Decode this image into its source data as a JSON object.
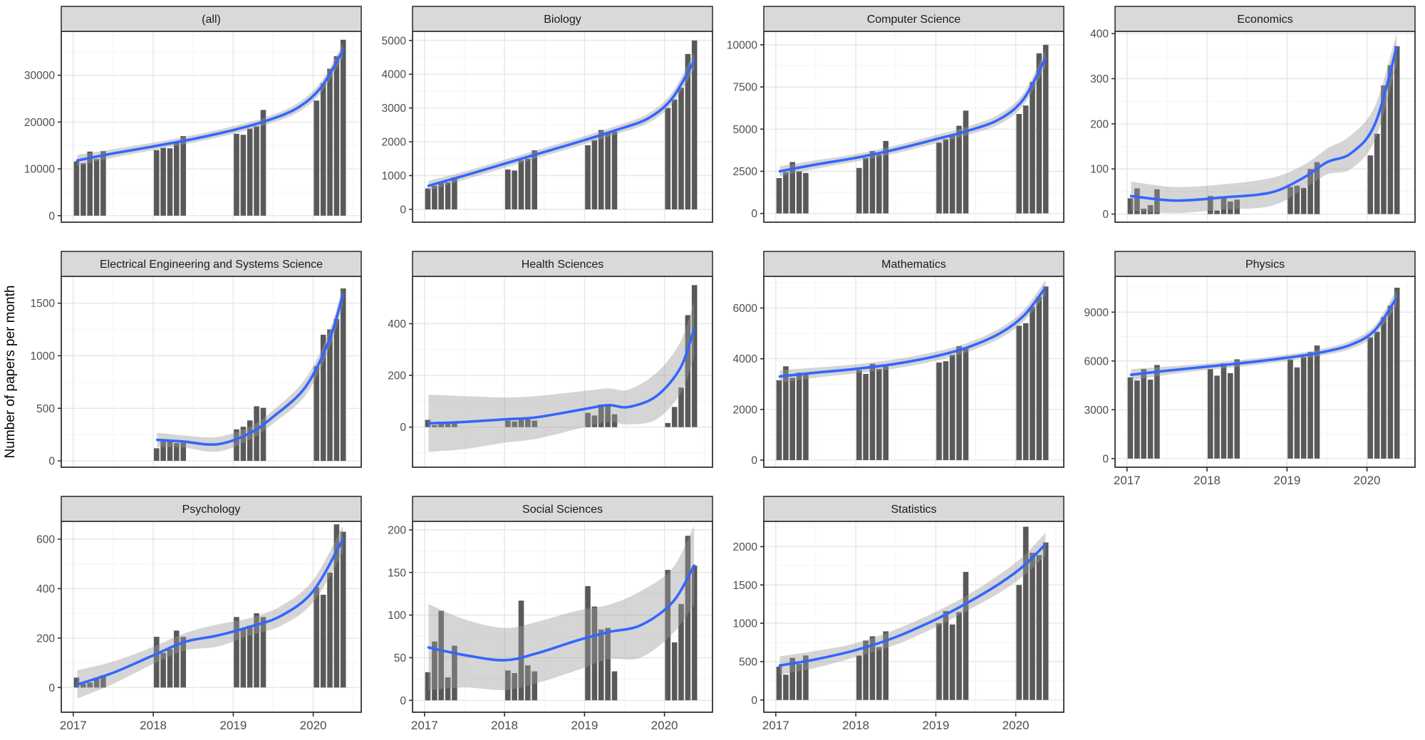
{
  "ylabel": "Number of papers per month",
  "x_tick_labels": [
    "2017",
    "2018",
    "2019",
    "2020"
  ],
  "colors": {
    "bar": "#595959",
    "line": "#3366FF",
    "ribbon": "#9a9a9a",
    "strip_bg": "#d9d9d9",
    "strip_border": "#333333",
    "panel_border": "#333333",
    "grid_major": "#e6e6e6",
    "grid_minor": "#f4f4f4",
    "axis_text": "#4d4d4d",
    "tick_mark": "#333333"
  },
  "layout": {
    "columns": 4,
    "xlim": [
      2016.85,
      2020.6
    ],
    "x_major_ticks": [
      2017,
      2018,
      2019,
      2020
    ],
    "bar_months_per_year": 5,
    "bar_width_years": 0.068,
    "legend": "none",
    "grid": "on"
  },
  "chart_data": [
    {
      "title": "(all)",
      "type": "bar+smooth",
      "show_x": false,
      "y_ticks": [
        0,
        10000,
        20000,
        30000
      ],
      "ylim": [
        -1400,
        39400
      ],
      "years": [
        2017,
        2018,
        2019,
        2020
      ],
      "bar_values": [
        [
          11600,
          11200,
          13700,
          12100,
          13800
        ],
        [
          14000,
          14500,
          14400,
          15500,
          17000
        ],
        [
          17500,
          17300,
          18600,
          19100,
          22600
        ],
        [
          24600,
          28300,
          31400,
          34100,
          37600
        ]
      ],
      "smooth": [
        [
          2017.05,
          11800,
          10600,
          13000
        ],
        [
          2017.5,
          13300,
          12400,
          14200
        ],
        [
          2018.0,
          14800,
          14000,
          15600
        ],
        [
          2018.5,
          16400,
          15600,
          17200
        ],
        [
          2019.0,
          18300,
          17500,
          19100
        ],
        [
          2019.4,
          20200,
          19400,
          21000
        ],
        [
          2019.8,
          23000,
          22000,
          24000
        ],
        [
          2020.1,
          27500,
          26300,
          28700
        ],
        [
          2020.37,
          35300,
          33800,
          36800
        ]
      ]
    },
    {
      "title": "Biology",
      "type": "bar+smooth",
      "show_x": false,
      "y_ticks": [
        0,
        1000,
        2000,
        3000,
        4000,
        5000
      ],
      "ylim": [
        -380,
        5270
      ],
      "years": [
        2017,
        2018,
        2019,
        2020
      ],
      "bar_values": [
        [
          620,
          700,
          820,
          800,
          950
        ],
        [
          1180,
          1150,
          1450,
          1500,
          1750
        ],
        [
          1900,
          2050,
          2350,
          2250,
          2300
        ],
        [
          3000,
          3250,
          3600,
          4600,
          5000
        ]
      ],
      "smooth": [
        [
          2017.05,
          700,
          550,
          850
        ],
        [
          2017.5,
          1000,
          880,
          1120
        ],
        [
          2018.0,
          1350,
          1230,
          1470
        ],
        [
          2018.5,
          1700,
          1580,
          1820
        ],
        [
          2019.0,
          2050,
          1930,
          2170
        ],
        [
          2019.4,
          2350,
          2230,
          2470
        ],
        [
          2019.8,
          2700,
          2560,
          2840
        ],
        [
          2020.1,
          3300,
          3130,
          3470
        ],
        [
          2020.37,
          4400,
          4150,
          4650
        ]
      ]
    },
    {
      "title": "Computer Science",
      "type": "bar+smooth",
      "show_x": false,
      "y_ticks": [
        0,
        2500,
        5000,
        7500,
        10000
      ],
      "ylim": [
        -520,
        10800
      ],
      "years": [
        2017,
        2018,
        2019,
        2020
      ],
      "bar_values": [
        [
          2100,
          2450,
          3050,
          2500,
          2400
        ],
        [
          2700,
          3300,
          3700,
          3500,
          4300
        ],
        [
          4200,
          4400,
          4600,
          5200,
          6100
        ],
        [
          5900,
          6400,
          7800,
          9500,
          10000
        ]
      ],
      "smooth": [
        [
          2017.05,
          2500,
          2200,
          2800
        ],
        [
          2017.5,
          2900,
          2650,
          3150
        ],
        [
          2018.0,
          3300,
          3080,
          3520
        ],
        [
          2018.5,
          3800,
          3570,
          4030
        ],
        [
          2019.0,
          4400,
          4150,
          4650
        ],
        [
          2019.4,
          4900,
          4650,
          5150
        ],
        [
          2019.8,
          5600,
          5300,
          5900
        ],
        [
          2020.1,
          6800,
          6450,
          7150
        ],
        [
          2020.37,
          9200,
          8700,
          9700
        ]
      ]
    },
    {
      "title": "Economics",
      "type": "bar+smooth",
      "show_x": false,
      "y_ticks": [
        0,
        100,
        200,
        300,
        400
      ],
      "ylim": [
        -18,
        405
      ],
      "years": [
        2017,
        2018,
        2019,
        2020
      ],
      "bar_values": [
        [
          35,
          57,
          12,
          20,
          55
        ],
        [
          40,
          8,
          38,
          28,
          32
        ],
        [
          60,
          63,
          58,
          100,
          115
        ],
        [
          130,
          178,
          285,
          330,
          372
        ]
      ],
      "smooth": [
        [
          2017.05,
          40,
          8,
          72
        ],
        [
          2017.6,
          30,
          2,
          60
        ],
        [
          2018.2,
          37,
          10,
          66
        ],
        [
          2018.8,
          48,
          18,
          80
        ],
        [
          2019.2,
          80,
          55,
          108
        ],
        [
          2019.5,
          115,
          88,
          145
        ],
        [
          2019.8,
          135,
          100,
          175
        ],
        [
          2020.1,
          200,
          165,
          240
        ],
        [
          2020.37,
          370,
          332,
          400
        ]
      ]
    },
    {
      "title": "Electrical Engineering and Systems Science",
      "type": "bar+smooth",
      "show_x": false,
      "y_ticks": [
        0,
        500,
        1000,
        1500
      ],
      "ylim": [
        -60,
        1755
      ],
      "years": [
        2017,
        2018,
        2019,
        2020
      ],
      "bar_values": [
        [
          null,
          null,
          null,
          null,
          null
        ],
        [
          120,
          185,
          185,
          170,
          185
        ],
        [
          300,
          325,
          385,
          520,
          505
        ],
        [
          900,
          1200,
          1250,
          1350,
          1640
        ]
      ],
      "smooth": [
        [
          2018.05,
          200,
          130,
          268
        ],
        [
          2018.37,
          185,
          128,
          242
        ],
        [
          2018.8,
          158,
          88,
          228
        ],
        [
          2019.2,
          260,
          198,
          322
        ],
        [
          2019.5,
          420,
          358,
          482
        ],
        [
          2019.9,
          700,
          620,
          780
        ],
        [
          2020.2,
          1150,
          1068,
          1232
        ],
        [
          2020.37,
          1580,
          1480,
          1662
        ]
      ]
    },
    {
      "title": "Health Sciences",
      "type": "bar+smooth",
      "show_x": false,
      "y_ticks": [
        0,
        200,
        400
      ],
      "ylim": [
        -155,
        583
      ],
      "years": [
        2017,
        2018,
        2019,
        2020
      ],
      "bar_values": [
        [
          28,
          8,
          12,
          14,
          18
        ],
        [
          25,
          22,
          28,
          30,
          25
        ],
        [
          55,
          45,
          88,
          82,
          50
        ],
        [
          16,
          78,
          153,
          433,
          549
        ]
      ],
      "smooth": [
        [
          2017.05,
          15,
          -95,
          125
        ],
        [
          2017.5,
          20,
          -85,
          120
        ],
        [
          2018.0,
          30,
          -60,
          115
        ],
        [
          2018.4,
          38,
          -45,
          120
        ],
        [
          2019.0,
          70,
          0,
          140
        ],
        [
          2019.3,
          85,
          20,
          150
        ],
        [
          2019.55,
          78,
          10,
          145
        ],
        [
          2019.9,
          120,
          30,
          210
        ],
        [
          2020.2,
          230,
          130,
          330
        ],
        [
          2020.37,
          380,
          272,
          490
        ]
      ]
    },
    {
      "title": "Mathematics",
      "type": "bar+smooth",
      "show_x": false,
      "y_ticks": [
        0,
        2000,
        4000,
        6000
      ],
      "ylim": [
        -280,
        7250
      ],
      "years": [
        2017,
        2018,
        2019,
        2020
      ],
      "bar_values": [
        [
          3150,
          3700,
          3250,
          3450,
          3400
        ],
        [
          3550,
          3400,
          3800,
          3600,
          3700
        ],
        [
          3850,
          3900,
          4150,
          4500,
          4450
        ],
        [
          5300,
          5400,
          6050,
          6450,
          6850
        ]
      ],
      "smooth": [
        [
          2017.05,
          3300,
          3050,
          3550
        ],
        [
          2017.5,
          3450,
          3250,
          3650
        ],
        [
          2018.0,
          3600,
          3420,
          3780
        ],
        [
          2018.5,
          3800,
          3620,
          3980
        ],
        [
          2019.0,
          4100,
          3920,
          4280
        ],
        [
          2019.4,
          4450,
          4270,
          4630
        ],
        [
          2019.8,
          5000,
          4800,
          5200
        ],
        [
          2020.1,
          5700,
          5480,
          5920
        ],
        [
          2020.37,
          6800,
          6500,
          7100
        ]
      ]
    },
    {
      "title": "Physics",
      "type": "bar+smooth",
      "show_x": true,
      "y_ticks": [
        0,
        3000,
        6000,
        9000
      ],
      "ylim": [
        -530,
        11200
      ],
      "years": [
        2017,
        2018,
        2019,
        2020
      ],
      "bar_values": [
        [
          5000,
          4800,
          5500,
          4850,
          5750
        ],
        [
          5500,
          5100,
          5850,
          5250,
          6100
        ],
        [
          6100,
          5600,
          6250,
          6550,
          6950
        ],
        [
          7450,
          7800,
          8700,
          9400,
          10500
        ]
      ],
      "smooth": [
        [
          2017.05,
          5150,
          4800,
          5500
        ],
        [
          2017.5,
          5400,
          5150,
          5650
        ],
        [
          2018.0,
          5650,
          5450,
          5850
        ],
        [
          2018.5,
          5900,
          5700,
          6100
        ],
        [
          2019.0,
          6200,
          6000,
          6400
        ],
        [
          2019.4,
          6500,
          6300,
          6700
        ],
        [
          2019.8,
          7000,
          6750,
          7250
        ],
        [
          2020.1,
          7900,
          7600,
          8200
        ],
        [
          2020.37,
          9900,
          9400,
          10400
        ]
      ]
    },
    {
      "title": "Psychology",
      "type": "bar+smooth",
      "show_x": true,
      "y_ticks": [
        0,
        200,
        400,
        600
      ],
      "ylim": [
        -100,
        672
      ],
      "years": [
        2017,
        2018,
        2019,
        2020
      ],
      "bar_values": [
        [
          40,
          15,
          20,
          40,
          50
        ],
        [
          205,
          140,
          155,
          230,
          205
        ],
        [
          285,
          240,
          250,
          300,
          285
        ],
        [
          405,
          375,
          465,
          660,
          630
        ]
      ],
      "smooth": [
        [
          2017.05,
          12,
          -45,
          70
        ],
        [
          2017.5,
          60,
          15,
          105
        ],
        [
          2018.0,
          130,
          95,
          165
        ],
        [
          2018.4,
          185,
          150,
          220
        ],
        [
          2018.8,
          210,
          165,
          255
        ],
        [
          2019.2,
          245,
          210,
          280
        ],
        [
          2019.6,
          290,
          250,
          330
        ],
        [
          2020.0,
          390,
          345,
          435
        ],
        [
          2020.37,
          600,
          545,
          655
        ]
      ]
    },
    {
      "title": "Social Sciences",
      "type": "bar+smooth",
      "show_x": true,
      "y_ticks": [
        0,
        50,
        100,
        150,
        200
      ],
      "ylim": [
        -14,
        210
      ],
      "years": [
        2017,
        2018,
        2019,
        2020
      ],
      "bar_values": [
        [
          33,
          69,
          105,
          27,
          64
        ],
        [
          35,
          32,
          117,
          41,
          34
        ],
        [
          134,
          110,
          83,
          85,
          34
        ],
        [
          153,
          68,
          113,
          193,
          158
        ]
      ],
      "smooth": [
        [
          2017.05,
          62,
          12,
          113
        ],
        [
          2017.5,
          53,
          15,
          95
        ],
        [
          2018.0,
          47,
          12,
          85
        ],
        [
          2018.4,
          55,
          20,
          92
        ],
        [
          2018.9,
          70,
          35,
          105
        ],
        [
          2019.3,
          80,
          48,
          112
        ],
        [
          2019.7,
          88,
          50,
          128
        ],
        [
          2020.1,
          115,
          78,
          155
        ],
        [
          2020.37,
          158,
          112,
          205
        ]
      ]
    },
    {
      "title": "Statistics",
      "type": "bar+smooth",
      "show_x": true,
      "y_ticks": [
        0,
        500,
        1000,
        1500,
        2000
      ],
      "ylim": [
        -160,
        2330
      ],
      "years": [
        2017,
        2018,
        2019,
        2020
      ],
      "bar_values": [
        [
          435,
          330,
          550,
          470,
          580
        ],
        [
          580,
          775,
          830,
          690,
          895
        ],
        [
          1000,
          1160,
          985,
          1145,
          1670
        ],
        [
          1500,
          2260,
          1920,
          1890,
          2055
        ]
      ],
      "smooth": [
        [
          2017.05,
          450,
          330,
          570
        ],
        [
          2017.5,
          530,
          420,
          640
        ],
        [
          2018.0,
          650,
          560,
          740
        ],
        [
          2018.5,
          820,
          720,
          920
        ],
        [
          2019.0,
          1050,
          950,
          1150
        ],
        [
          2019.4,
          1270,
          1170,
          1370
        ],
        [
          2019.8,
          1520,
          1400,
          1640
        ],
        [
          2020.1,
          1750,
          1620,
          1880
        ],
        [
          2020.37,
          2030,
          1880,
          2180
        ]
      ]
    }
  ]
}
